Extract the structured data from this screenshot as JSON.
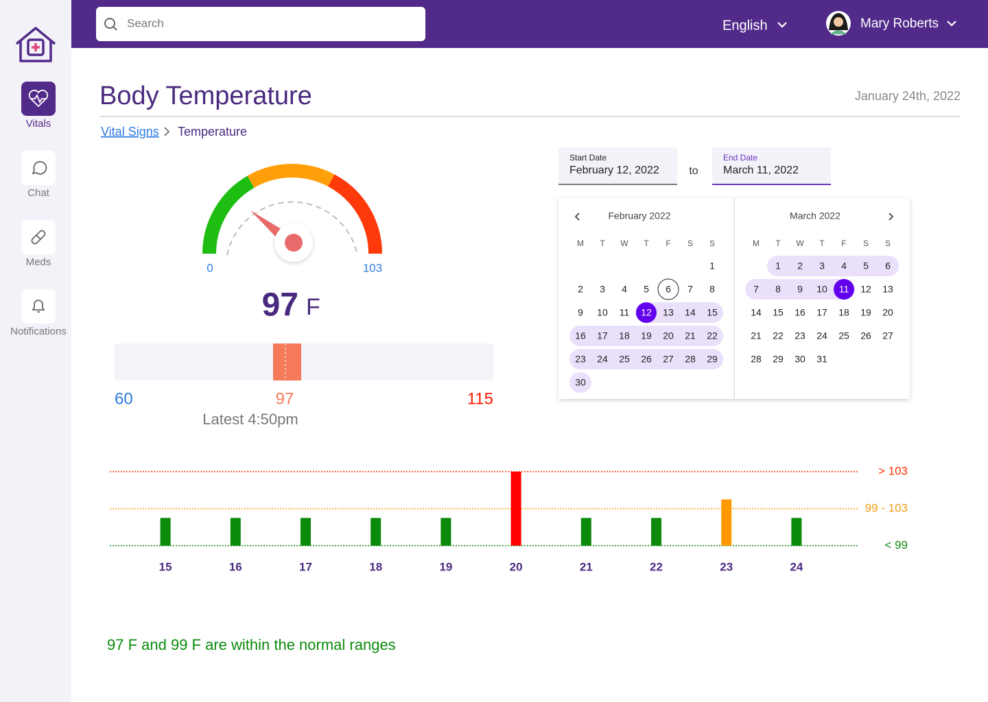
{
  "sidebar": {
    "nav": [
      "Vitals",
      "Chat",
      "Meds",
      "Notifications"
    ],
    "active": 0
  },
  "header": {
    "search_placeholder": "Search",
    "language": "English",
    "user": "Mary Roberts"
  },
  "page": {
    "title": "Body Temperature",
    "date": "January 24th, 2022",
    "breadcrumb": [
      "Vital Signs",
      "Temperature"
    ]
  },
  "gauge": {
    "min": 0,
    "max": 103,
    "value": 97,
    "unit": "F"
  },
  "range_bar": {
    "min": 60,
    "max": 115,
    "value": 97,
    "caption": "Latest 4:50pm"
  },
  "date_range": {
    "start_label": "Start Date",
    "start_value": "February 12, 2022",
    "separator": "to",
    "end_label": "End Date",
    "end_value": "March 11, 2022"
  },
  "calendar": {
    "weekdays": [
      "M",
      "T",
      "W",
      "T",
      "F",
      "S",
      "S"
    ],
    "months": [
      {
        "title": "February 2022",
        "weeks": [
          [
            null,
            null,
            null,
            null,
            null,
            null,
            1
          ],
          [
            2,
            3,
            4,
            5,
            6,
            7,
            8
          ],
          [
            9,
            10,
            11,
            12,
            13,
            14,
            15
          ],
          [
            16,
            17,
            18,
            19,
            20,
            21,
            22
          ],
          [
            23,
            24,
            25,
            26,
            27,
            28,
            29
          ],
          [
            30
          ]
        ],
        "range": [
          12,
          30
        ],
        "selected": 12,
        "marked": 6
      },
      {
        "title": "March 2022",
        "weeks": [
          [
            null,
            1,
            2,
            3,
            4,
            5,
            6
          ],
          [
            7,
            8,
            9,
            10,
            11,
            12,
            13
          ],
          [
            14,
            15,
            16,
            17,
            18,
            19,
            20
          ],
          [
            21,
            22,
            23,
            24,
            25,
            26,
            27
          ],
          [
            28,
            29,
            30,
            31
          ]
        ],
        "range": [
          1,
          11
        ],
        "selected": 11
      }
    ]
  },
  "chart_data": {
    "type": "bar",
    "categories": [
      "15",
      "16",
      "17",
      "18",
      "19",
      "20",
      "21",
      "22",
      "23",
      "24"
    ],
    "values": [
      98,
      98,
      98,
      98,
      98,
      103,
      98,
      98,
      100,
      98
    ],
    "colors": [
      "#0b8a0b",
      "#0b8a0b",
      "#0b8a0b",
      "#0b8a0b",
      "#0b8a0b",
      "#ff0000",
      "#0b8a0b",
      "#0b8a0b",
      "#ff9900",
      "#0b8a0b"
    ],
    "ylim": [
      95,
      103
    ],
    "yticks": [
      {
        "value": 95,
        "label": "< 99"
      },
      {
        "value": 99,
        "label": "99 - 103"
      },
      {
        "value": 103,
        "label": "> 103"
      }
    ],
    "ytick_colors": [
      "#128a12",
      "#f39c12",
      "#ff3300"
    ]
  },
  "note": "97 F and 99 F are within the normal ranges"
}
